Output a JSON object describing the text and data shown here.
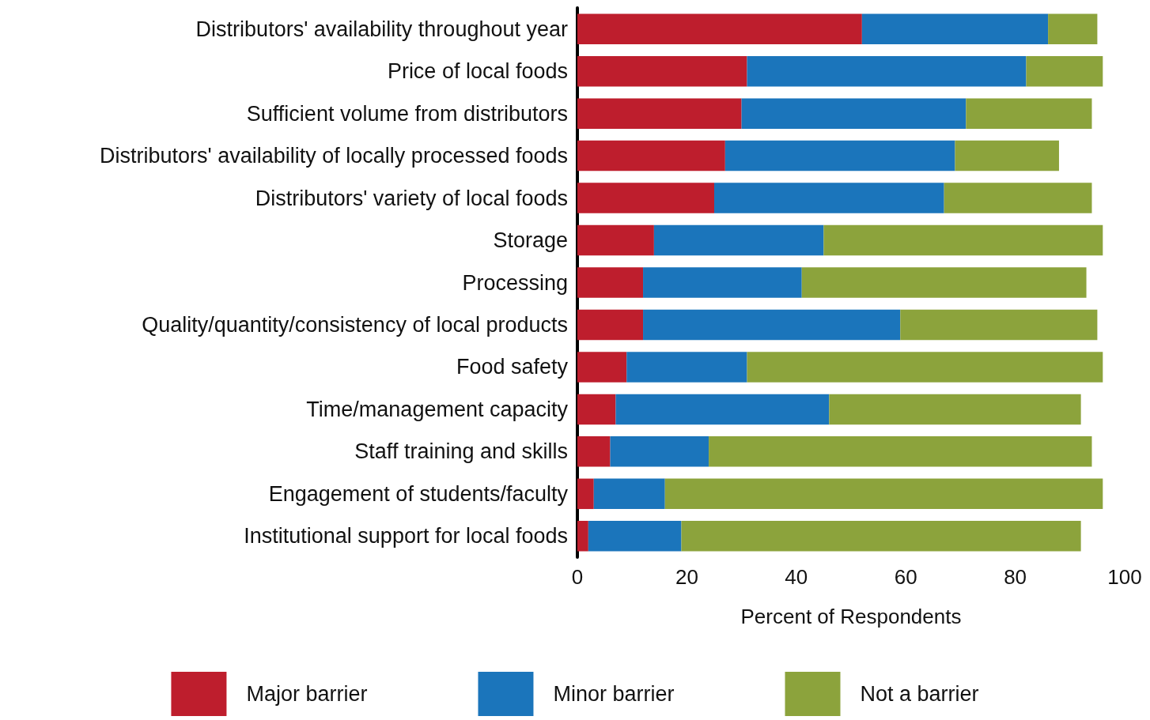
{
  "chart_data": {
    "type": "bar",
    "orientation": "horizontal",
    "stacked": true,
    "xlabel": "Percent of Respondents",
    "categories": [
      "Distributors' availability throughout year",
      "Price of local foods",
      "Sufficient volume from distributors",
      "Distributors' availability of locally processed foods",
      "Distributors' variety of local foods",
      "Storage",
      "Processing",
      "Quality/quantity/consistency of local products",
      "Food safety",
      "Time/management capacity",
      "Staff training and skills",
      "Engagement of students/faculty",
      "Institutional support for local foods"
    ],
    "series": [
      {
        "name": "Major barrier",
        "color": "#be1e2d",
        "values": [
          52,
          31,
          30,
          27,
          25,
          14,
          12,
          12,
          9,
          7,
          6,
          3,
          2
        ]
      },
      {
        "name": "Minor barrier",
        "color": "#1b75bb",
        "values": [
          34,
          51,
          41,
          42,
          42,
          31,
          29,
          47,
          22,
          39,
          18,
          13,
          17
        ]
      },
      {
        "name": "Not a barrier",
        "color": "#8ca33c",
        "values": [
          9,
          14,
          23,
          19,
          27,
          51,
          52,
          36,
          65,
          46,
          70,
          80,
          73
        ]
      }
    ],
    "xlim": [
      0,
      100
    ],
    "xticks": [
      0,
      20,
      40,
      60,
      80,
      100
    ],
    "grid": false,
    "legend": "bottom"
  }
}
